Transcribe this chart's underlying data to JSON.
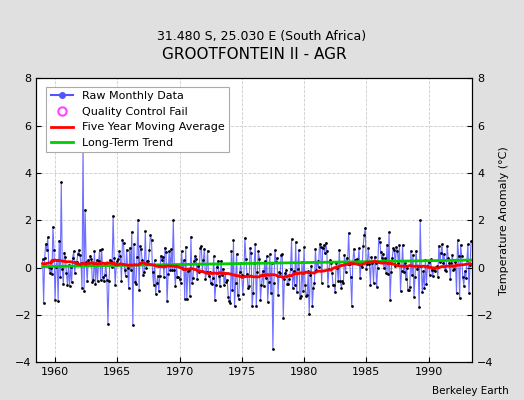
{
  "title": "GROOTFONTEIN II - AGR",
  "subtitle": "31.480 S, 25.030 E (South Africa)",
  "ylabel": "Temperature Anomaly (°C)",
  "attribution": "Berkeley Earth",
  "xlim": [
    1958.5,
    1993.5
  ],
  "ylim": [
    -4,
    8
  ],
  "yticks_left": [
    -4,
    -2,
    0,
    2,
    4,
    6,
    8
  ],
  "yticks_right": [
    -4,
    -2,
    0,
    2,
    4,
    6,
    8
  ],
  "xticks": [
    1960,
    1965,
    1970,
    1975,
    1980,
    1985,
    1990
  ],
  "fig_facecolor": "#e0e0e0",
  "plot_facecolor": "#ffffff",
  "raw_color": "#5555ff",
  "ma_color": "#ff0000",
  "trend_color": "#00cc00",
  "qc_color": "#ff44ff",
  "grid_color": "#cccccc",
  "legend_fontsize": 8,
  "title_fontsize": 11,
  "subtitle_fontsize": 9
}
